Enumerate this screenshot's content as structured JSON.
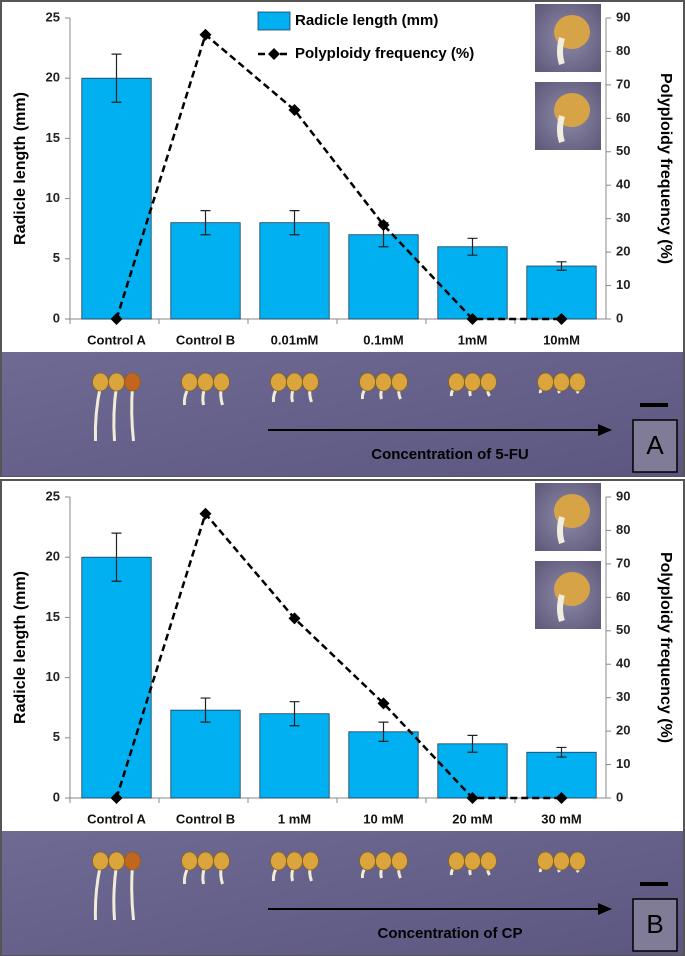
{
  "chart_data": [
    {
      "type": "bar",
      "categories": [
        "Control A",
        "Control B",
        "0.01mM",
        "0.1mM",
        "1mM",
        "10mM"
      ],
      "series": [
        {
          "name": "Radicle length (mm)",
          "type": "bar",
          "color": "#00b0f0",
          "values": [
            20,
            8,
            8,
            7,
            6,
            4.4
          ],
          "errors": [
            2,
            1,
            1,
            1,
            0.7,
            0.35
          ]
        },
        {
          "name": "Polyploidy frequency (%)",
          "type": "line",
          "axis": "y2",
          "color": "#000000",
          "values": [
            0,
            85,
            62.5,
            28.1,
            0,
            0
          ]
        }
      ],
      "ylabel": "Radicle length (mm)",
      "y2label": "Polyploidy frequency (%)",
      "ylim": [
        0,
        25
      ],
      "yticks": [
        0,
        5,
        10,
        15,
        20,
        25
      ],
      "y2lim": [
        0,
        90
      ],
      "y2ticks": [
        0,
        10,
        20,
        30,
        40,
        50,
        60,
        70,
        80,
        90
      ],
      "legend": "top",
      "annotation": "Concentration of 5-FU",
      "panel_label": "A"
    },
    {
      "type": "bar",
      "categories": [
        "Control A",
        "Control B",
        "1 mM",
        "10 mM",
        "20 mM",
        "30 mM"
      ],
      "series": [
        {
          "type": "bar",
          "color": "#00b0f0",
          "values": [
            20,
            7.3,
            7,
            5.5,
            4.5,
            3.8
          ],
          "errors": [
            2,
            1,
            1,
            0.8,
            0.7,
            0.4
          ]
        },
        {
          "type": "line",
          "axis": "y2",
          "color": "#000000",
          "values": [
            0,
            85,
            53.7,
            28.3,
            0,
            0
          ]
        }
      ],
      "ylabel": "Radicle length (mm)",
      "y2label": "Polyploidy frequency (%)",
      "ylim": [
        0,
        25
      ],
      "yticks": [
        0,
        5,
        10,
        15,
        20,
        25
      ],
      "y2lim": [
        0,
        90
      ],
      "y2ticks": [
        0,
        10,
        20,
        30,
        40,
        50,
        60,
        70,
        80,
        90
      ],
      "annotation": "Concentration of CP",
      "panel_label": "B"
    }
  ]
}
